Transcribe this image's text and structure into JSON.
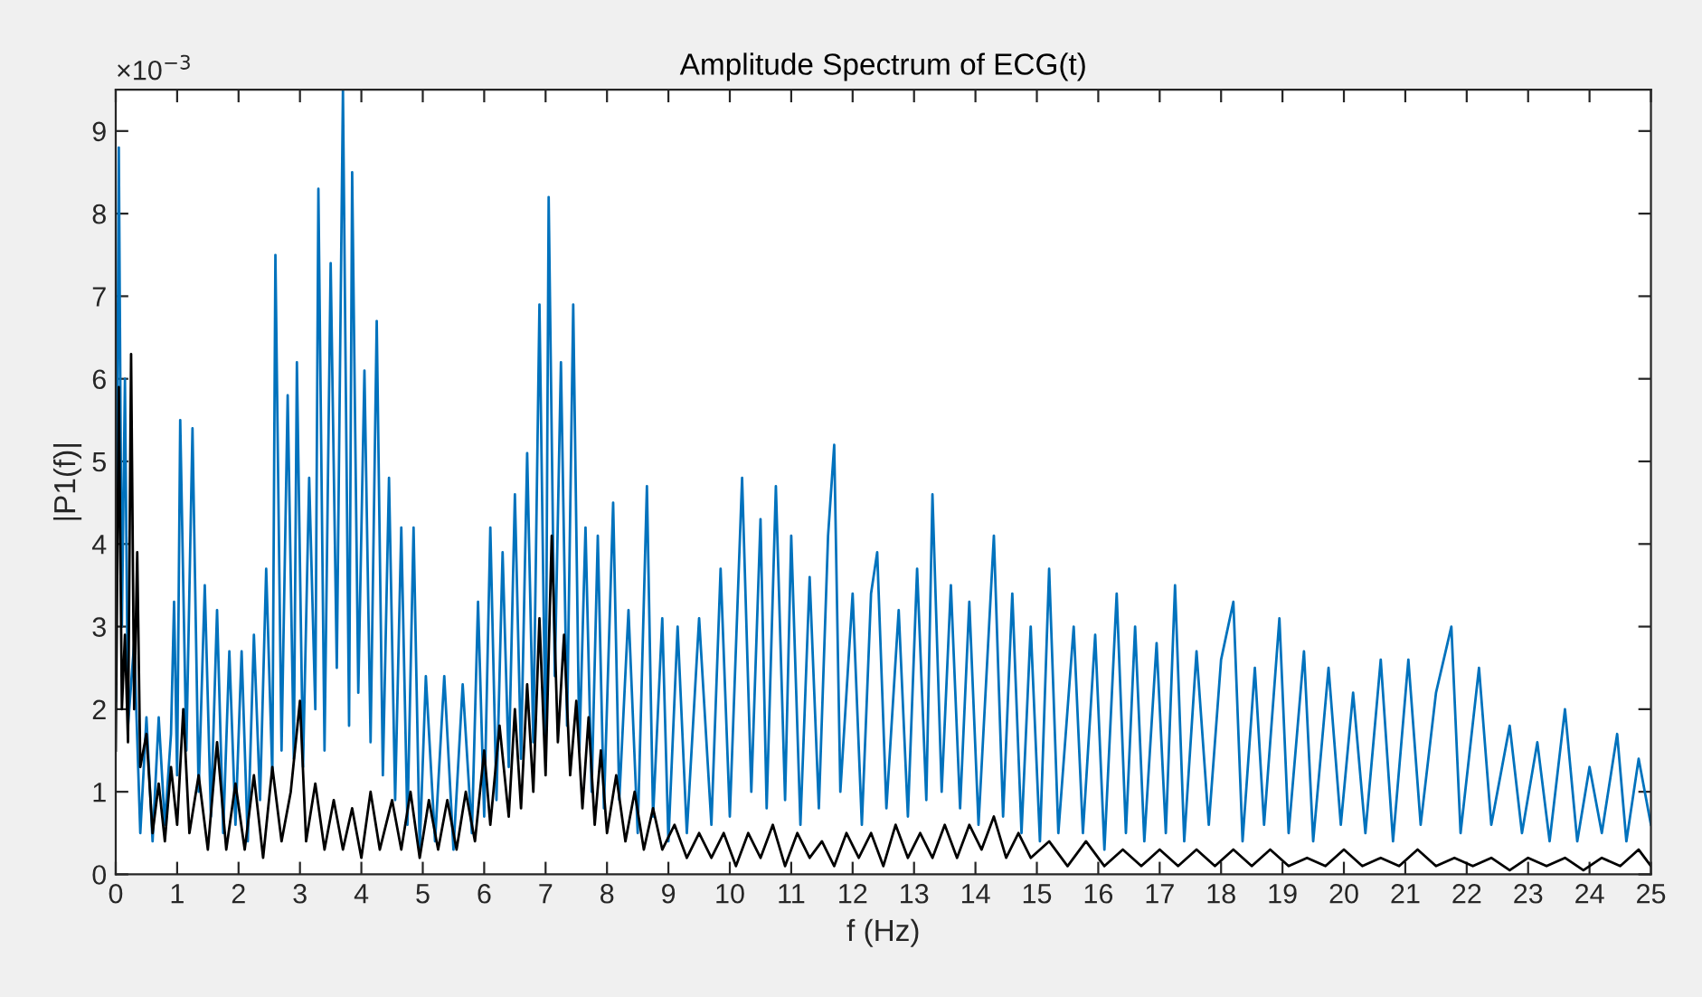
{
  "chart_data": {
    "type": "line",
    "title": "Amplitude Spectrum of ECG(t)",
    "xlabel": "f (Hz)",
    "ylabel": "|P1(f)|",
    "annotations": [
      "×10$^{−3}$"
    ],
    "xlim": [
      0,
      25
    ],
    "ylim": [
      0,
      9.5
    ],
    "xticks": [
      0,
      1,
      2,
      3,
      4,
      5,
      6,
      7,
      8,
      9,
      10,
      11,
      12,
      13,
      14,
      15,
      16,
      17,
      18,
      19,
      20,
      21,
      22,
      23,
      24,
      25
    ],
    "yticks": [
      0,
      1,
      2,
      3,
      4,
      5,
      6,
      7,
      8,
      9
    ],
    "grid": false,
    "marker": "none",
    "line_style": "solid",
    "series": [
      {
        "color": "#0072bd",
        "x": [
          0,
          0.05,
          0.1,
          0.15,
          0.2,
          0.3,
          0.4,
          0.5,
          0.6,
          0.7,
          0.8,
          0.9,
          0.95,
          1.0,
          1.05,
          1.15,
          1.25,
          1.35,
          1.45,
          1.55,
          1.65,
          1.75,
          1.85,
          1.95,
          2.05,
          2.15,
          2.25,
          2.35,
          2.45,
          2.55,
          2.6,
          2.7,
          2.8,
          2.9,
          2.95,
          3.05,
          3.15,
          3.25,
          3.3,
          3.4,
          3.5,
          3.6,
          3.7,
          3.8,
          3.85,
          3.95,
          4.05,
          4.15,
          4.25,
          4.35,
          4.45,
          4.55,
          4.65,
          4.75,
          4.85,
          4.95,
          5.05,
          5.2,
          5.35,
          5.5,
          5.65,
          5.8,
          5.9,
          6.0,
          6.1,
          6.2,
          6.3,
          6.4,
          6.5,
          6.6,
          6.7,
          6.8,
          6.9,
          7.0,
          7.05,
          7.15,
          7.25,
          7.35,
          7.45,
          7.55,
          7.65,
          7.75,
          7.85,
          7.95,
          8.1,
          8.2,
          8.35,
          8.5,
          8.65,
          8.75,
          8.9,
          9.0,
          9.15,
          9.3,
          9.5,
          9.7,
          9.85,
          10.0,
          10.2,
          10.35,
          10.5,
          10.6,
          10.75,
          10.9,
          11.0,
          11.15,
          11.3,
          11.45,
          11.6,
          11.7,
          11.8,
          12.0,
          12.15,
          12.3,
          12.4,
          12.55,
          12.75,
          12.9,
          13.05,
          13.2,
          13.3,
          13.45,
          13.6,
          13.75,
          13.9,
          14.05,
          14.3,
          14.45,
          14.6,
          14.75,
          14.9,
          15.05,
          15.2,
          15.35,
          15.6,
          15.75,
          15.95,
          16.1,
          16.3,
          16.45,
          16.6,
          16.75,
          16.95,
          17.1,
          17.25,
          17.4,
          17.6,
          17.8,
          18.0,
          18.2,
          18.35,
          18.55,
          18.7,
          18.95,
          19.1,
          19.35,
          19.5,
          19.75,
          19.95,
          20.15,
          20.35,
          20.6,
          20.8,
          21.05,
          21.25,
          21.5,
          21.75,
          21.9,
          22.2,
          22.4,
          22.7,
          22.9,
          23.15,
          23.35,
          23.6,
          23.8,
          24.0,
          24.2,
          24.45,
          24.6,
          24.8,
          25
        ],
        "values": [
          2.1,
          8.8,
          3.0,
          6.0,
          1.8,
          2.8,
          0.5,
          1.9,
          0.4,
          1.9,
          0.6,
          1.7,
          3.3,
          1.2,
          5.5,
          1.5,
          5.4,
          1.0,
          3.5,
          0.7,
          3.2,
          0.5,
          2.7,
          0.6,
          2.7,
          0.4,
          2.9,
          0.9,
          3.7,
          1.2,
          7.5,
          1.5,
          5.8,
          1.4,
          6.2,
          1.3,
          4.8,
          2.0,
          8.3,
          1.5,
          7.4,
          2.5,
          9.5,
          1.8,
          8.5,
          2.2,
          6.1,
          1.6,
          6.7,
          1.2,
          4.8,
          0.9,
          4.2,
          0.6,
          4.2,
          0.3,
          2.4,
          0.4,
          2.4,
          0.3,
          2.3,
          0.5,
          3.3,
          0.7,
          4.2,
          0.9,
          3.9,
          1.3,
          4.6,
          1.4,
          5.1,
          1.6,
          6.9,
          1.5,
          8.2,
          2.4,
          6.2,
          1.8,
          6.9,
          1.5,
          4.2,
          1.0,
          4.1,
          0.8,
          4.5,
          0.9,
          3.2,
          0.5,
          4.7,
          0.7,
          3.1,
          0.4,
          3.0,
          0.5,
          3.1,
          0.6,
          3.7,
          0.7,
          4.8,
          1.0,
          4.3,
          0.8,
          4.7,
          0.9,
          4.1,
          0.6,
          3.6,
          0.8,
          4.1,
          5.2,
          1.0,
          3.4,
          0.6,
          3.4,
          3.9,
          0.8,
          3.2,
          0.7,
          3.7,
          0.9,
          4.6,
          1.0,
          3.5,
          0.8,
          3.3,
          0.6,
          4.1,
          0.7,
          3.4,
          0.5,
          3.0,
          0.4,
          3.7,
          0.5,
          3.0,
          0.5,
          2.9,
          0.3,
          3.4,
          0.5,
          3.0,
          0.4,
          2.8,
          0.5,
          3.5,
          0.4,
          2.7,
          0.6,
          2.6,
          3.3,
          0.4,
          2.5,
          0.6,
          3.1,
          0.5,
          2.7,
          0.4,
          2.5,
          0.6,
          2.2,
          0.5,
          2.6,
          0.4,
          2.6,
          0.6,
          2.2,
          3.0,
          0.5,
          2.5,
          0.6,
          1.8,
          0.5,
          1.6,
          0.4,
          2.0,
          0.4,
          1.3,
          0.5,
          1.7,
          0.4,
          1.4,
          0.6
        ]
      },
      {
        "color": "#000000",
        "x": [
          0,
          0.05,
          0.1,
          0.15,
          0.2,
          0.25,
          0.3,
          0.35,
          0.4,
          0.5,
          0.6,
          0.7,
          0.8,
          0.9,
          1.0,
          1.1,
          1.2,
          1.35,
          1.5,
          1.65,
          1.8,
          1.95,
          2.1,
          2.25,
          2.4,
          2.55,
          2.7,
          2.85,
          3.0,
          3.1,
          3.25,
          3.4,
          3.55,
          3.7,
          3.85,
          4.0,
          4.15,
          4.3,
          4.5,
          4.65,
          4.8,
          4.95,
          5.1,
          5.25,
          5.4,
          5.55,
          5.7,
          5.85,
          6.0,
          6.1,
          6.25,
          6.4,
          6.5,
          6.6,
          6.7,
          6.8,
          6.9,
          7.0,
          7.1,
          7.2,
          7.3,
          7.4,
          7.5,
          7.6,
          7.7,
          7.8,
          7.9,
          8.0,
          8.15,
          8.3,
          8.45,
          8.6,
          8.75,
          8.9,
          9.1,
          9.3,
          9.5,
          9.7,
          9.9,
          10.1,
          10.3,
          10.5,
          10.7,
          10.9,
          11.1,
          11.3,
          11.5,
          11.7,
          11.9,
          12.1,
          12.3,
          12.5,
          12.7,
          12.9,
          13.1,
          13.3,
          13.5,
          13.7,
          13.9,
          14.1,
          14.3,
          14.5,
          14.7,
          14.9,
          15.2,
          15.5,
          15.8,
          16.1,
          16.4,
          16.7,
          17.0,
          17.3,
          17.6,
          17.9,
          18.2,
          18.5,
          18.8,
          19.1,
          19.4,
          19.7,
          20.0,
          20.3,
          20.6,
          20.9,
          21.2,
          21.5,
          21.8,
          22.1,
          22.4,
          22.7,
          23.0,
          23.3,
          23.6,
          23.9,
          24.2,
          24.5,
          24.8,
          25
        ],
        "values": [
          1.5,
          5.9,
          2.0,
          2.9,
          1.6,
          6.3,
          2.0,
          3.9,
          1.3,
          1.7,
          0.5,
          1.1,
          0.4,
          1.3,
          0.6,
          2.0,
          0.5,
          1.2,
          0.3,
          1.6,
          0.3,
          1.1,
          0.3,
          1.2,
          0.2,
          1.3,
          0.4,
          1.0,
          2.1,
          0.4,
          1.1,
          0.3,
          0.9,
          0.3,
          0.8,
          0.2,
          1.0,
          0.3,
          0.9,
          0.3,
          1.0,
          0.2,
          0.9,
          0.3,
          0.9,
          0.3,
          1.0,
          0.4,
          1.5,
          0.6,
          1.8,
          0.7,
          2.0,
          0.8,
          2.3,
          1.0,
          3.1,
          1.2,
          4.1,
          1.6,
          2.9,
          1.2,
          2.1,
          0.8,
          1.9,
          0.6,
          1.5,
          0.5,
          1.2,
          0.4,
          1.0,
          0.3,
          0.8,
          0.3,
          0.6,
          0.2,
          0.5,
          0.2,
          0.5,
          0.1,
          0.5,
          0.2,
          0.6,
          0.1,
          0.5,
          0.2,
          0.4,
          0.1,
          0.5,
          0.2,
          0.5,
          0.1,
          0.6,
          0.2,
          0.5,
          0.2,
          0.6,
          0.2,
          0.6,
          0.3,
          0.7,
          0.2,
          0.5,
          0.2,
          0.4,
          0.1,
          0.4,
          0.1,
          0.3,
          0.1,
          0.3,
          0.1,
          0.3,
          0.1,
          0.3,
          0.1,
          0.3,
          0.1,
          0.2,
          0.1,
          0.3,
          0.1,
          0.2,
          0.1,
          0.3,
          0.1,
          0.2,
          0.1,
          0.2,
          0.05,
          0.2,
          0.1,
          0.2,
          0.05,
          0.2,
          0.1,
          0.3,
          0.1
        ]
      }
    ]
  }
}
